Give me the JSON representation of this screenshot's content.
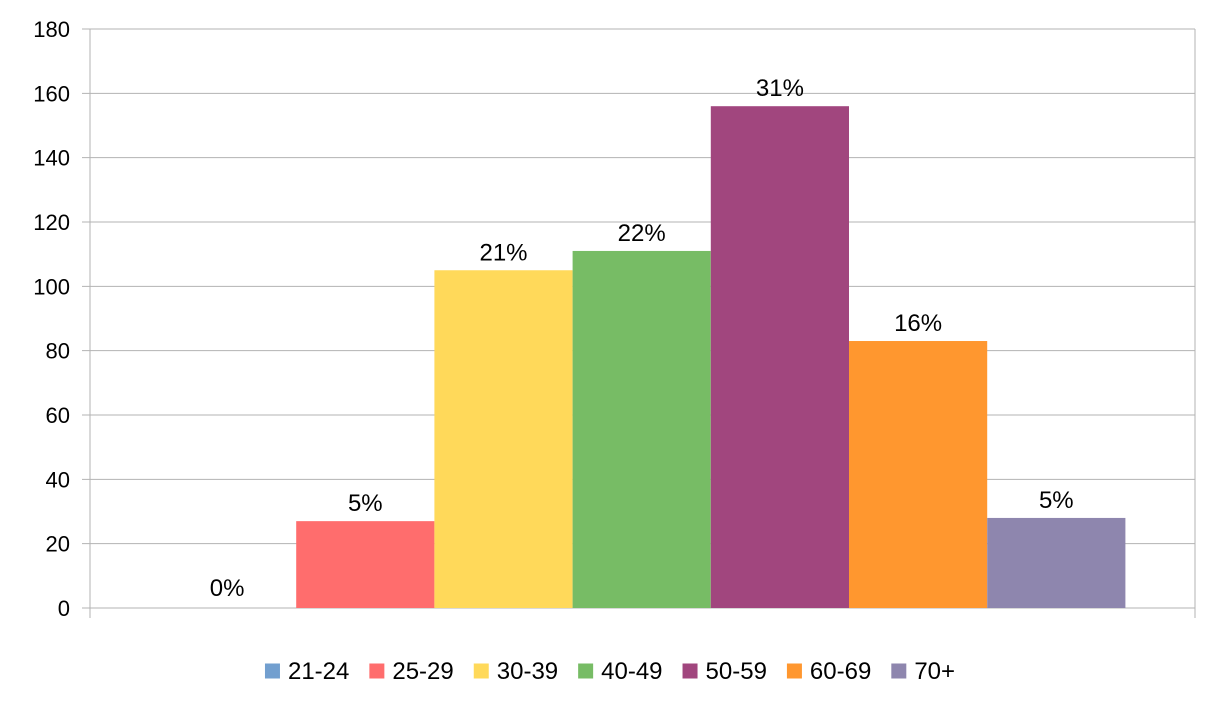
{
  "chart_data": {
    "type": "bar",
    "title": "",
    "xlabel": "",
    "ylabel": "",
    "ylim": [
      0,
      180
    ],
    "y_ticks": [
      0,
      20,
      40,
      60,
      80,
      100,
      120,
      140,
      160,
      180
    ],
    "grid": true,
    "legend_position": "bottom",
    "series": [
      {
        "name": "21-24",
        "value": 0,
        "label": "0%",
        "color": "#729fcf"
      },
      {
        "name": "25-29",
        "value": 27,
        "label": "5%",
        "color": "#ff6d6d"
      },
      {
        "name": "30-39",
        "value": 105,
        "label": "21%",
        "color": "#ffd95a"
      },
      {
        "name": "40-49",
        "value": 111,
        "label": "22%",
        "color": "#77bc65"
      },
      {
        "name": "50-59",
        "value": 156,
        "label": "31%",
        "color": "#a1467e"
      },
      {
        "name": "60-69",
        "value": 83,
        "label": "16%",
        "color": "#ff972f"
      },
      {
        "name": "70+",
        "value": 28,
        "label": "5%",
        "color": "#8e86ae"
      }
    ]
  }
}
